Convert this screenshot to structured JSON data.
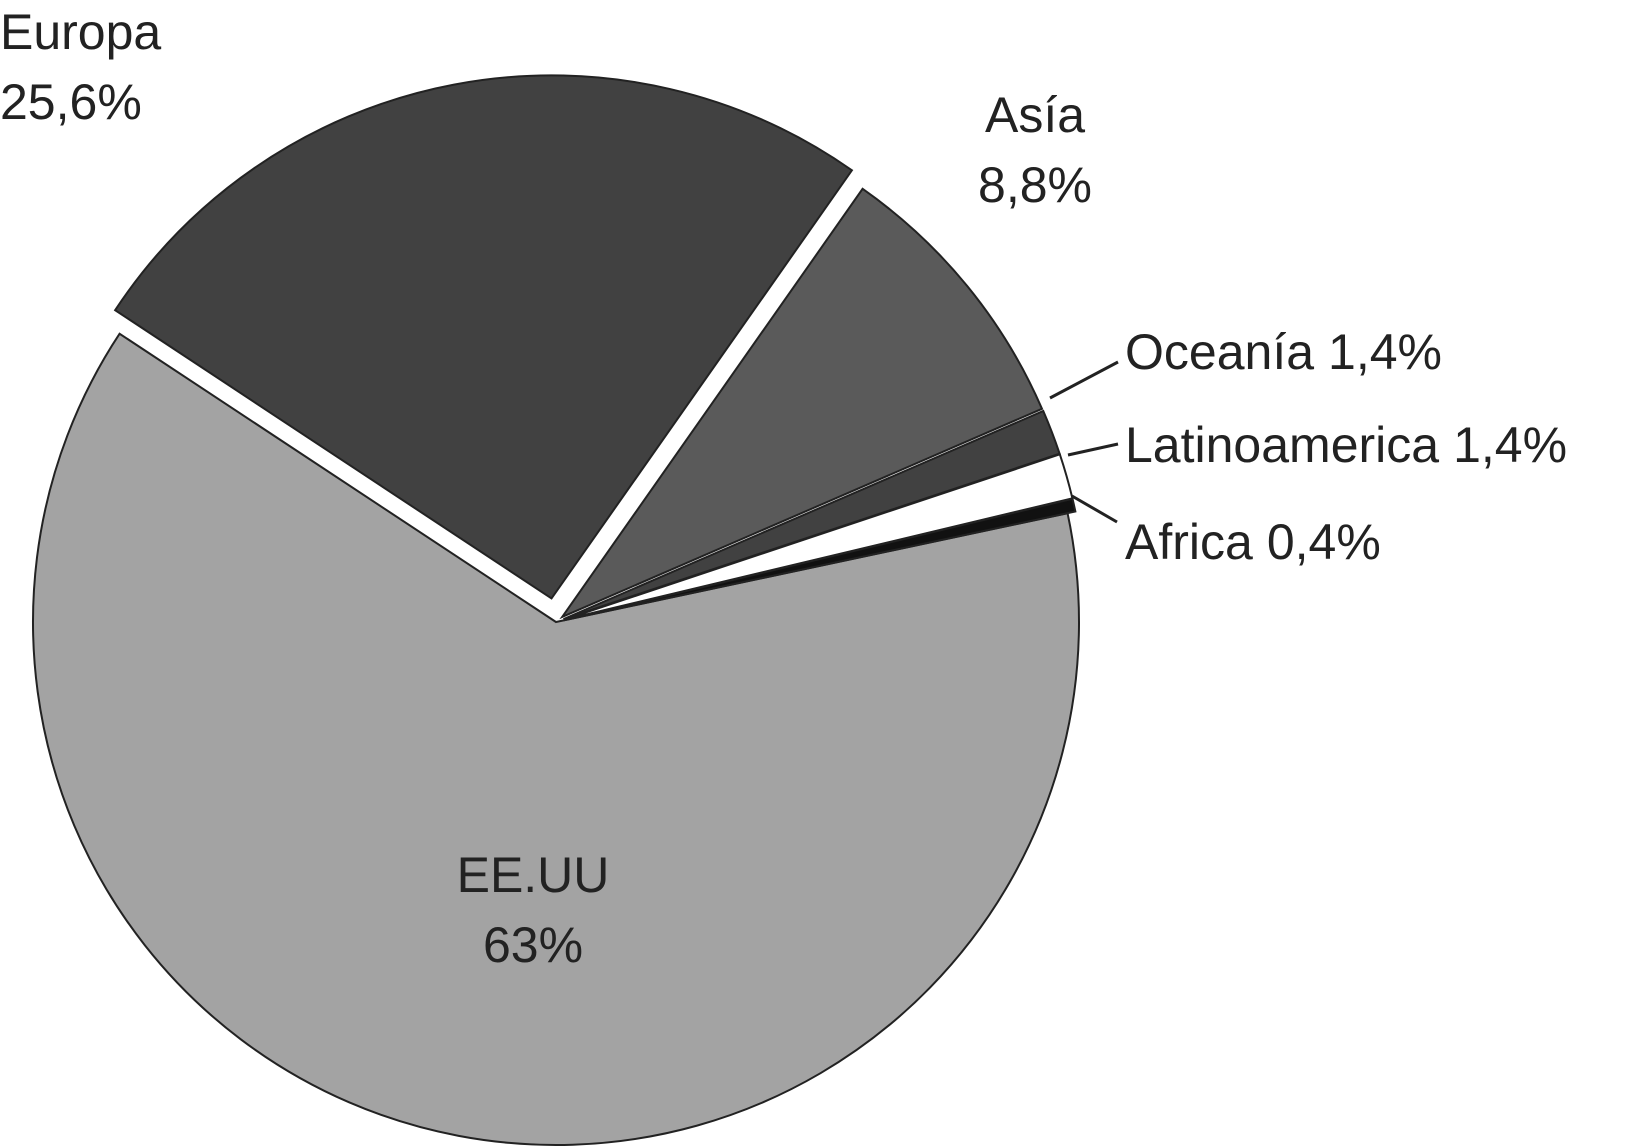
{
  "chart_data": {
    "type": "pie",
    "categories": [
      "EE.UU",
      "Europa",
      "Asía",
      "Oceanía",
      "Latinoamerica",
      "Africa"
    ],
    "values": [
      63,
      25.6,
      8.8,
      1.4,
      1.4,
      0.4
    ],
    "value_labels": [
      "63%",
      "25,6%",
      "8,8%",
      "1,4%",
      "1,4%",
      "0,4%"
    ],
    "colors": [
      "#a3a3a3",
      "#414141",
      "#5a5a5a",
      "#414141",
      "#ffffff",
      "#111111"
    ]
  }
}
